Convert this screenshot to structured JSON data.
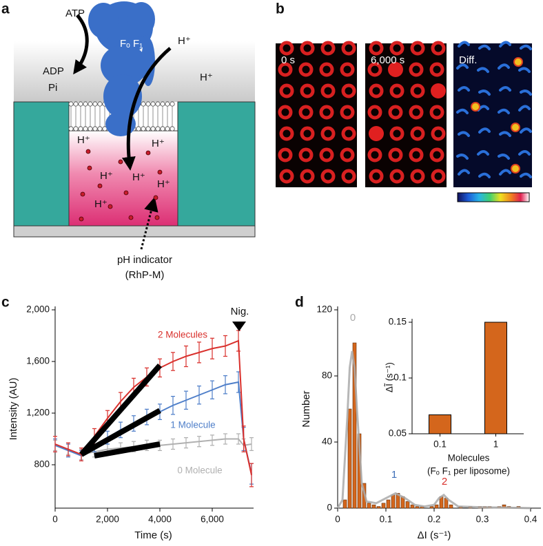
{
  "panel_labels": [
    "a",
    "b",
    "c",
    "d"
  ],
  "diagram": {
    "atp": "ATP",
    "adp": "ADP",
    "pi": "Pi",
    "enzyme": "Fₒ F₁",
    "proton": "H⁺",
    "indicator": "pH indicator",
    "indicator_name": "(RhP-M)"
  },
  "images": [
    {
      "label": "0 s"
    },
    {
      "label": "6,000 s"
    },
    {
      "label": "Diff."
    }
  ],
  "chart_data": [
    {
      "type": "line",
      "xlabel": "Time (s)",
      "ylabel": "Intensity (AU)",
      "x": [
        0,
        500,
        1000,
        1500,
        2000,
        2500,
        3000,
        3500,
        4000,
        4500,
        5000,
        5500,
        6000,
        6500,
        7000,
        7200,
        7500
      ],
      "series": [
        {
          "name": "2 Molecules",
          "color": "#d9302c",
          "values": [
            960,
            920,
            880,
            1020,
            1160,
            1290,
            1400,
            1480,
            1550,
            1600,
            1640,
            1670,
            1700,
            1720,
            1760,
            1000,
            720
          ],
          "errors": [
            60,
            50,
            50,
            60,
            60,
            70,
            70,
            70,
            70,
            70,
            80,
            80,
            80,
            80,
            80,
            100,
            90
          ]
        },
        {
          "name": "1 Molecule",
          "color": "#4f7fc9",
          "values": [
            950,
            910,
            870,
            950,
            1010,
            1070,
            1120,
            1170,
            1210,
            1260,
            1300,
            1340,
            1380,
            1420,
            1440,
            1000,
            730
          ],
          "errors": [
            50,
            50,
            40,
            50,
            50,
            60,
            60,
            60,
            60,
            70,
            70,
            70,
            70,
            70,
            80,
            90,
            80
          ]
        },
        {
          "name": "0 Molecule",
          "color": "#b0b0b0",
          "values": [
            950,
            920,
            880,
            900,
            920,
            930,
            940,
            950,
            950,
            960,
            970,
            980,
            990,
            1000,
            1000,
            950,
            960
          ],
          "errors": [
            40,
            40,
            40,
            40,
            40,
            40,
            40,
            40,
            40,
            40,
            40,
            40,
            40,
            40,
            40,
            50,
            50
          ]
        }
      ],
      "fits": [
        {
          "x": [
            1000,
            4000
          ],
          "values": [
            880,
            1570
          ]
        },
        {
          "x": [
            1000,
            4000
          ],
          "values": [
            880,
            1220
          ]
        },
        {
          "x": [
            1500,
            4000
          ],
          "values": [
            870,
            960
          ]
        }
      ],
      "annotation": "Nig.",
      "xlim": [
        0,
        7500
      ],
      "ylim": [
        464,
        2000
      ],
      "xticks": [
        0,
        {
          "value": 2000,
          "label": "2,000"
        },
        {
          "value": 4000,
          "label": "4,000"
        },
        {
          "value": 6000,
          "label": "6,000"
        }
      ],
      "yticks": [
        800,
        {
          "value": 1200,
          "label": "1,200"
        },
        {
          "value": 1600,
          "label": "1,600"
        },
        {
          "value": 2000,
          "label": "2,000"
        }
      ]
    },
    {
      "type": "histogram",
      "xlabel": "ΔI (s⁻¹)",
      "ylabel": "Number",
      "color": "#d4661c",
      "bins": [
        0,
        0.01,
        0.02,
        0.03,
        0.04,
        0.05,
        0.06,
        0.07,
        0.08,
        0.09,
        0.1,
        0.11,
        0.12,
        0.13,
        0.14,
        0.15,
        0.16,
        0.17,
        0.18,
        0.19,
        0.2,
        0.21,
        0.22,
        0.23,
        0.24,
        0.25,
        0.26,
        0.27,
        0.28,
        0.29,
        0.3,
        0.31,
        0.32,
        0.33,
        0.34,
        0.35,
        0.36,
        0.37,
        0.38,
        0.39,
        0.4
      ],
      "counts": [
        0,
        5,
        60,
        100,
        45,
        15,
        3,
        2,
        1,
        3,
        5,
        8,
        9,
        7,
        4,
        2,
        1,
        1,
        0,
        1,
        2,
        7,
        6,
        2,
        0,
        1,
        0,
        1,
        0,
        1,
        1,
        1,
        0,
        1,
        2,
        1,
        0,
        1,
        0,
        0
      ],
      "fit": {
        "x": [
          0,
          0.01,
          0.02,
          0.025,
          0.03,
          0.035,
          0.04,
          0.05,
          0.06,
          0.08,
          0.1,
          0.12,
          0.14,
          0.16,
          0.18,
          0.2,
          0.21,
          0.22,
          0.23,
          0.25,
          0.3,
          0.35,
          0.4
        ],
        "values": [
          0,
          5,
          55,
          85,
          95,
          85,
          60,
          15,
          4,
          3,
          6,
          9,
          6,
          2,
          1,
          2,
          6,
          8,
          5,
          1,
          0.5,
          0.3,
          0
        ]
      },
      "peak_labels": [
        {
          "text": "0",
          "color": "#aaaaaa"
        },
        {
          "text": "1",
          "color": "#3f6fb8"
        },
        {
          "text": "2",
          "color": "#d9302c"
        }
      ],
      "xlim": [
        0,
        0.4
      ],
      "ylim": [
        0,
        120
      ],
      "xticks": [
        0,
        0.1,
        0.2,
        0.3,
        0.4
      ],
      "yticks": [
        0,
        40,
        80,
        120
      ]
    },
    {
      "type": "bar",
      "ylabel": "ΔĨ (s⁻¹)",
      "xlabel": "Molecules",
      "xlabel_note": "(Fₒ F₁ per liposome)",
      "color": "#d4661c",
      "categories": [
        "0.1",
        "1"
      ],
      "values": [
        0.067,
        0.15
      ],
      "ylim": [
        0.05,
        0.15
      ],
      "yticks": [
        0.05,
        0.1,
        0.15
      ]
    }
  ]
}
